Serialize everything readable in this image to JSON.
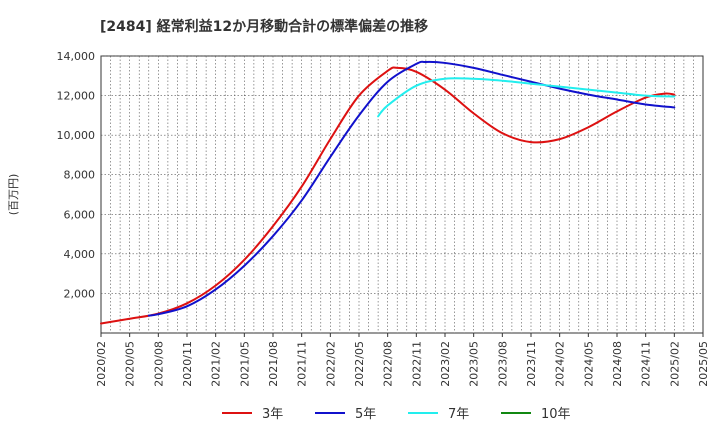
{
  "chart_data": {
    "type": "line",
    "title": "[2484]  経常利益12か月移動合計の標準偏差の推移",
    "ylabel": "(百万円)",
    "xlabel": "",
    "ylim": [
      0,
      14000
    ],
    "yticks": [
      2000,
      4000,
      6000,
      8000,
      10000,
      12000,
      14000
    ],
    "xticks": [
      "2020/02",
      "2020/05",
      "2020/08",
      "2020/11",
      "2021/02",
      "2021/05",
      "2021/08",
      "2021/11",
      "2022/02",
      "2022/05",
      "2022/08",
      "2022/11",
      "2023/02",
      "2023/05",
      "2023/08",
      "2023/11",
      "2024/02",
      "2024/05",
      "2024/08",
      "2024/11",
      "2025/02",
      "2025/05"
    ],
    "grid": true,
    "legend_position": "bottom",
    "series": [
      {
        "name": "3年",
        "color": "#dd1111",
        "points": [
          [
            "2020/02",
            480
          ],
          [
            "2020/05",
            720
          ],
          [
            "2020/08",
            980
          ],
          [
            "2020/11",
            1500
          ],
          [
            "2021/02",
            2400
          ],
          [
            "2021/05",
            3700
          ],
          [
            "2021/08",
            5400
          ],
          [
            "2021/11",
            7400
          ],
          [
            "2022/02",
            9800
          ],
          [
            "2022/05",
            12000
          ],
          [
            "2022/08",
            13250
          ],
          [
            "2022/09",
            13400
          ],
          [
            "2022/11",
            13200
          ],
          [
            "2023/02",
            12300
          ],
          [
            "2023/05",
            11100
          ],
          [
            "2023/08",
            10100
          ],
          [
            "2023/11",
            9650
          ],
          [
            "2024/02",
            9800
          ],
          [
            "2024/05",
            10400
          ],
          [
            "2024/08",
            11200
          ],
          [
            "2024/11",
            11900
          ],
          [
            "2025/01",
            12100
          ],
          [
            "2025/02",
            12050
          ]
        ]
      },
      {
        "name": "5年",
        "color": "#1111cc",
        "points": [
          [
            "2020/07",
            880
          ],
          [
            "2020/08",
            950
          ],
          [
            "2020/11",
            1350
          ],
          [
            "2021/02",
            2200
          ],
          [
            "2021/05",
            3400
          ],
          [
            "2021/08",
            4900
          ],
          [
            "2021/11",
            6700
          ],
          [
            "2022/02",
            8900
          ],
          [
            "2022/05",
            11000
          ],
          [
            "2022/08",
            12700
          ],
          [
            "2022/11",
            13600
          ],
          [
            "2022/12",
            13700
          ],
          [
            "2023/02",
            13650
          ],
          [
            "2023/05",
            13400
          ],
          [
            "2023/08",
            13050
          ],
          [
            "2023/11",
            12700
          ],
          [
            "2024/02",
            12350
          ],
          [
            "2024/05",
            12050
          ],
          [
            "2024/08",
            11800
          ],
          [
            "2024/11",
            11550
          ],
          [
            "2025/02",
            11400
          ]
        ]
      },
      {
        "name": "7年",
        "color": "#22eeee",
        "points": [
          [
            "2022/07",
            10950
          ],
          [
            "2022/08",
            11500
          ],
          [
            "2022/11",
            12500
          ],
          [
            "2023/02",
            12850
          ],
          [
            "2023/05",
            12850
          ],
          [
            "2023/08",
            12750
          ],
          [
            "2023/11",
            12600
          ],
          [
            "2024/02",
            12450
          ],
          [
            "2024/05",
            12300
          ],
          [
            "2024/08",
            12150
          ],
          [
            "2024/11",
            12000
          ],
          [
            "2025/02",
            11950
          ]
        ]
      },
      {
        "name": "10年",
        "color": "#118811",
        "points": []
      }
    ]
  }
}
